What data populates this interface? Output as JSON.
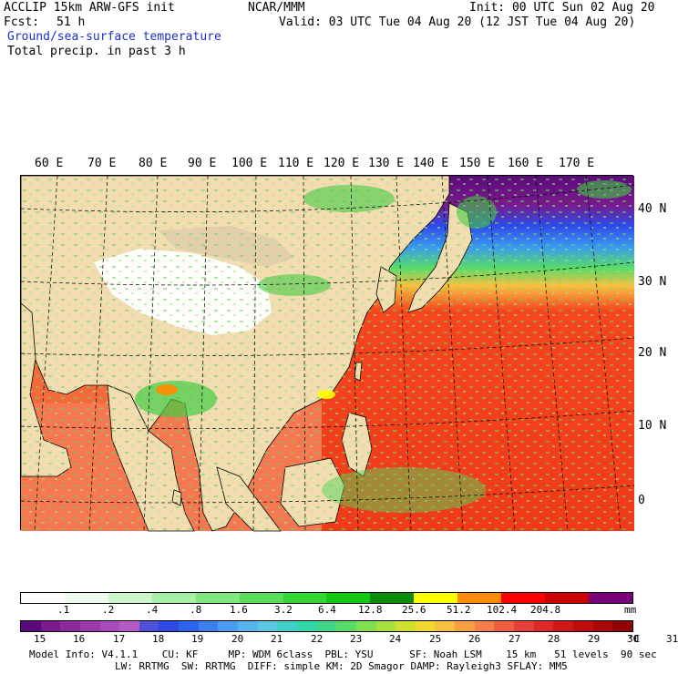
{
  "header": {
    "model": "ACCLIP 15km ARW-GFS init",
    "org": "NCAR/MMM",
    "init": "Init: 00 UTC Sun 02 Aug 20",
    "fcst_label": "Fcst:",
    "fcst_value": "51 h",
    "valid": "Valid: 03 UTC Tue 04 Aug 20 (12 JST Tue 04 Aug 20)",
    "field1": "Ground/sea-surface temperature",
    "field2": "Total precip. in past 3 h"
  },
  "map": {
    "lon_labels": [
      "60 E",
      "70 E",
      "80 E",
      "90 E",
      "100 E",
      "110 E",
      "120 E",
      "130 E",
      "140 E",
      "150 E",
      "160 E",
      "170 E"
    ],
    "lat_labels": [
      "40 N",
      "30 N",
      "20 N",
      "10 N",
      "0"
    ]
  },
  "precip_bar": {
    "labels": [
      ".1",
      ".2",
      ".4",
      ".8",
      "1.6",
      "3.2",
      "6.4",
      "12.8",
      "25.6",
      "51.2",
      "102.4",
      "204.8"
    ],
    "unit": "mm",
    "colors": [
      "#ffffff",
      "#eefbee",
      "#ccf5cc",
      "#a7eea7",
      "#80e680",
      "#5ade5a",
      "#33d633",
      "#10c810",
      "#0a8c0a",
      "#ffff00",
      "#ff8c00",
      "#ff0000",
      "#cc0000",
      "#7a007a"
    ]
  },
  "temp_bar": {
    "labels": [
      "15",
      "16",
      "17",
      "18",
      "19",
      "20",
      "21",
      "22",
      "23",
      "24",
      "25",
      "26",
      "27",
      "28",
      "29",
      "30",
      "31"
    ],
    "unit": "°C",
    "colors": [
      "#5a0a7a",
      "#7a1a8c",
      "#8c2a9c",
      "#9c3aac",
      "#a84ab8",
      "#b45ac4",
      "#5050d8",
      "#3048e8",
      "#2a64f0",
      "#3a80f0",
      "#4a9cf0",
      "#56b4ec",
      "#5ac8e0",
      "#40d0c8",
      "#30d8a8",
      "#40d888",
      "#58dc68",
      "#80e050",
      "#a8e040",
      "#d0e030",
      "#f0d830",
      "#f8c040",
      "#f8a040",
      "#f88048",
      "#f06040",
      "#e84038",
      "#e02828",
      "#d01818",
      "#c00c0c",
      "#a80808",
      "#900404"
    ]
  },
  "footer": {
    "line1": "Model Info: V4.1.1    CU: KF     MP: WDM 6class  PBL: YSU      SF: Noah LSM    15 km   51 levels  90 sec",
    "line2": "LW: RRTMG  SW: RRTMG  DIFF: simple KM: 2D Smagor DAMP: Rayleigh3 SFLAY: MM5"
  },
  "colors": {
    "land": "#f2dcb0",
    "snow": "#ffffff",
    "warm_sea": "#f5461e",
    "cool_sea": "#3a9af0",
    "cold_sea": "#5a0a7a",
    "precip": "#55d655"
  }
}
